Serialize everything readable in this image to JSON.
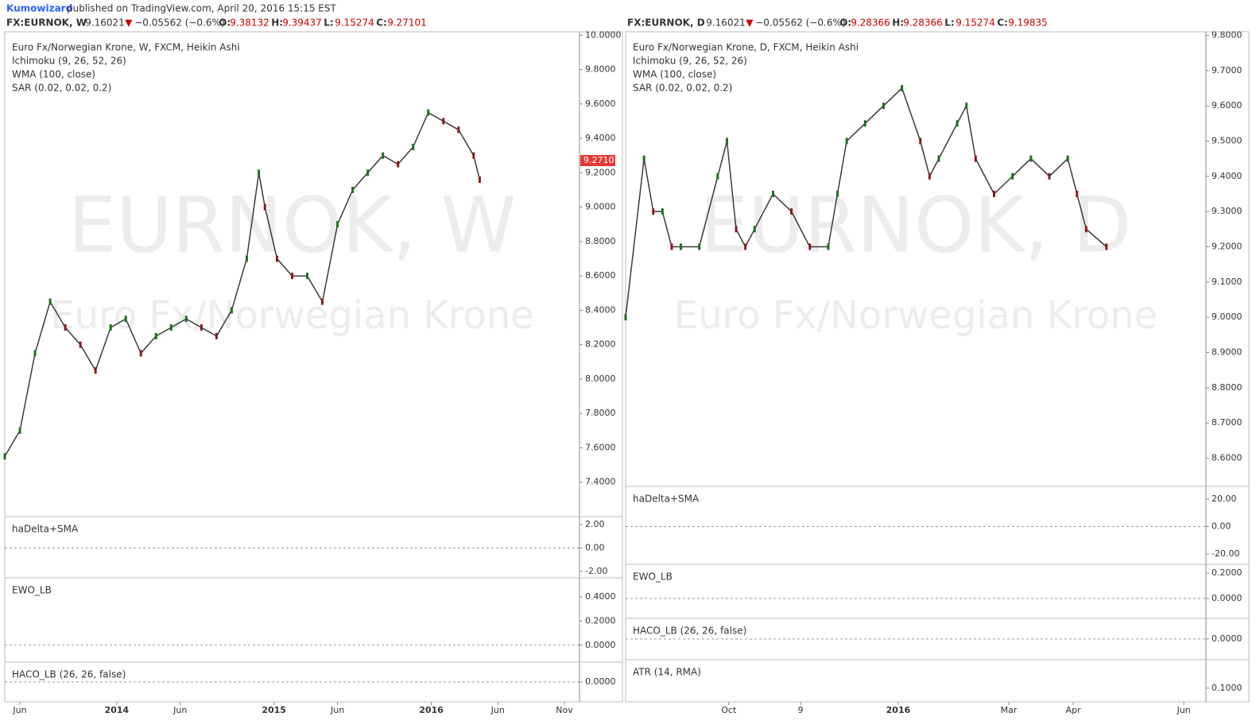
{
  "header": {
    "author": "Kumowizard",
    "text": "published on TradingView.com, April 20, 2016 15:15 EST"
  },
  "chart_data": [
    {
      "type": "line",
      "symbol": "FX:EURNOK, W",
      "price": "9.16021",
      "arrow": "▼",
      "change": "−0.05562 (−0.6%)",
      "ohlc": [
        {
          "key": "O:",
          "value": "9.38132"
        },
        {
          "key": "H:",
          "value": "9.39437"
        },
        {
          "key": "L:",
          "value": "9.15274"
        },
        {
          "key": "C:",
          "value": "9.27101"
        }
      ],
      "title": "Euro Fx/Norwegian Krone, W, FXCM, Heikin Ashi",
      "legend": [
        "Ichimoku (9, 26, 52, 26)",
        "WMA (100, close)",
        "SAR (0.02, 0.02, 0.2)"
      ],
      "watermark": [
        "EURNOK, W",
        "Euro Fx/Norwegian Krone"
      ],
      "color": "#3a3a3a",
      "x": [
        0,
        5,
        10,
        15,
        20,
        25,
        30,
        35,
        40,
        45,
        50,
        55,
        60,
        65,
        70,
        75,
        80,
        84,
        86,
        90,
        95,
        100,
        105,
        110,
        115,
        120,
        125,
        130,
        135,
        140,
        145,
        150,
        155,
        157
      ],
      "values": [
        7.55,
        7.7,
        8.15,
        8.45,
        8.3,
        8.2,
        8.05,
        8.3,
        8.35,
        8.15,
        8.25,
        8.3,
        8.35,
        8.3,
        8.25,
        8.4,
        8.7,
        9.2,
        9.0,
        8.7,
        8.6,
        8.6,
        8.45,
        8.9,
        9.1,
        9.2,
        9.3,
        9.25,
        9.35,
        9.55,
        9.5,
        9.45,
        9.3,
        9.16
      ],
      "last_price": {
        "value": 9.271,
        "label": "9.2710"
      },
      "xlim": [
        0,
        190
      ],
      "xticks": [
        {
          "value": 5,
          "label": "Jun"
        },
        {
          "value": 37,
          "label": "2014"
        },
        {
          "value": 58,
          "label": "Jun"
        },
        {
          "value": 89,
          "label": "2015"
        },
        {
          "value": 110,
          "label": "Jun"
        },
        {
          "value": 141,
          "label": "2016"
        },
        {
          "value": 163,
          "label": "Jun"
        },
        {
          "value": 185,
          "label": "Nov"
        }
      ],
      "ylim": [
        7.2,
        10.02
      ],
      "yticks": [
        {
          "value": 7.4,
          "label": "7.4000"
        },
        {
          "value": 7.6,
          "label": "7.6000"
        },
        {
          "value": 7.8,
          "label": "7.8000"
        },
        {
          "value": 8.0,
          "label": "8.0000"
        },
        {
          "value": 8.2,
          "label": "8.2000"
        },
        {
          "value": 8.4,
          "label": "8.4000"
        },
        {
          "value": 8.6,
          "label": "8.6000"
        },
        {
          "value": 8.8,
          "label": "8.8000"
        },
        {
          "value": 9.0,
          "label": "9.0000"
        },
        {
          "value": 9.2,
          "label": "9.2000"
        },
        {
          "value": 9.4,
          "label": "9.4000"
        },
        {
          "value": 9.6,
          "label": "9.6000"
        },
        {
          "value": 9.8,
          "label": "9.8000"
        },
        {
          "value": 10.0,
          "label": "10.0000"
        }
      ]
    },
    {
      "type": "indicator",
      "title": "haDelta+SMA",
      "ylim": [
        -2.55,
        2.68
      ],
      "yticks": [
        {
          "value": 2,
          "label": "2.00"
        },
        {
          "value": 0,
          "label": "0.00"
        },
        {
          "value": -2,
          "label": "-2.00"
        }
      ]
    },
    {
      "type": "indicator",
      "title": "EWO_LB",
      "ylim": [
        -0.14,
        0.56
      ],
      "yticks": [
        {
          "value": 0.4,
          "label": "0.4000"
        },
        {
          "value": 0.2,
          "label": "0.2000"
        },
        {
          "value": 0,
          "label": "0.0000"
        }
      ]
    },
    {
      "type": "indicator",
      "title": "HACO_LB (26, 26, false)",
      "ylim": [
        -1,
        1
      ],
      "yticks": [
        {
          "value": 0,
          "label": "0.0000"
        }
      ]
    },
    {
      "type": "line",
      "symbol": "FX:EURNOK, D",
      "price": "9.16021",
      "arrow": "▼",
      "change": "−0.05562 (−0.6%)",
      "ohlc": [
        {
          "key": "O:",
          "value": "9.28366"
        },
        {
          "key": "H:",
          "value": "9.28366"
        },
        {
          "key": "L:",
          "value": "9.15274"
        },
        {
          "key": "C:",
          "value": "9.19835"
        }
      ],
      "title": "Euro Fx/Norwegian Krone, D, FXCM, Heikin Ashi",
      "legend": [
        "Ichimoku (9, 26, 52, 26)",
        "WMA (100, close)",
        "SAR (0.02, 0.02, 0.2)"
      ],
      "watermark": [
        "EURNOK, D",
        "Euro Fx/Norwegian Krone"
      ],
      "color": "#3a3a3a",
      "x": [
        0,
        10,
        15,
        20,
        25,
        30,
        40,
        50,
        55,
        60,
        65,
        70,
        80,
        90,
        100,
        110,
        115,
        120,
        130,
        140,
        150,
        160,
        165,
        170,
        180,
        185,
        190,
        200,
        210,
        220,
        230,
        240,
        245,
        250,
        261
      ],
      "values": [
        9.0,
        9.45,
        9.3,
        9.3,
        9.2,
        9.2,
        9.2,
        9.4,
        9.5,
        9.25,
        9.2,
        9.25,
        9.35,
        9.3,
        9.2,
        9.2,
        9.35,
        9.5,
        9.55,
        9.6,
        9.65,
        9.5,
        9.4,
        9.45,
        9.55,
        9.6,
        9.45,
        9.35,
        9.4,
        9.45,
        9.4,
        9.45,
        9.35,
        9.25,
        9.2
      ],
      "xlim": [
        0,
        315
      ],
      "xticks": [
        {
          "value": 56,
          "label": "Oct"
        },
        {
          "value": 95,
          "label": "9"
        },
        {
          "value": 148,
          "label": "2016"
        },
        {
          "value": 208,
          "label": "Mar"
        },
        {
          "value": 243,
          "label": "Apr"
        },
        {
          "value": 303,
          "label": "Jun"
        }
      ],
      "ylim": [
        8.52,
        9.81
      ],
      "yticks": [
        {
          "value": 8.6,
          "label": "8.6000"
        },
        {
          "value": 8.7,
          "label": "8.7000"
        },
        {
          "value": 8.8,
          "label": "8.8000"
        },
        {
          "value": 8.9,
          "label": "8.9000"
        },
        {
          "value": 9.0,
          "label": "9.0000"
        },
        {
          "value": 9.1,
          "label": "9.1000"
        },
        {
          "value": 9.2,
          "label": "9.2000"
        },
        {
          "value": 9.3,
          "label": "9.3000"
        },
        {
          "value": 9.4,
          "label": "9.4000"
        },
        {
          "value": 9.5,
          "label": "9.5000"
        },
        {
          "value": 9.6,
          "label": "9.6000"
        },
        {
          "value": 9.7,
          "label": "9.7000"
        },
        {
          "value": 9.8,
          "label": "9.8000"
        }
      ]
    },
    {
      "type": "indicator",
      "title": "haDelta+SMA",
      "ylim": [
        -27.5,
        29.3
      ],
      "yticks": [
        {
          "value": 20,
          "label": "20.00"
        },
        {
          "value": 0,
          "label": "0.00"
        },
        {
          "value": -20,
          "label": "-20.00"
        }
      ]
    },
    {
      "type": "indicator",
      "title": "EWO_LB",
      "ylim": [
        -0.156,
        0.269
      ],
      "yticks": [
        {
          "value": 0.2,
          "label": "0.2000"
        },
        {
          "value": 0,
          "label": "0.0000"
        }
      ]
    },
    {
      "type": "indicator",
      "title": "HACO_LB (26, 26, false)",
      "ylim": [
        -1,
        1
      ],
      "yticks": [
        {
          "value": 0,
          "label": "0.0000"
        }
      ]
    },
    {
      "type": "indicator",
      "title": "ATR (14, RMA)",
      "ylim": [
        0.088,
        0.125
      ],
      "yticks": [
        {
          "value": 0.1,
          "label": "0.1000"
        }
      ]
    }
  ]
}
